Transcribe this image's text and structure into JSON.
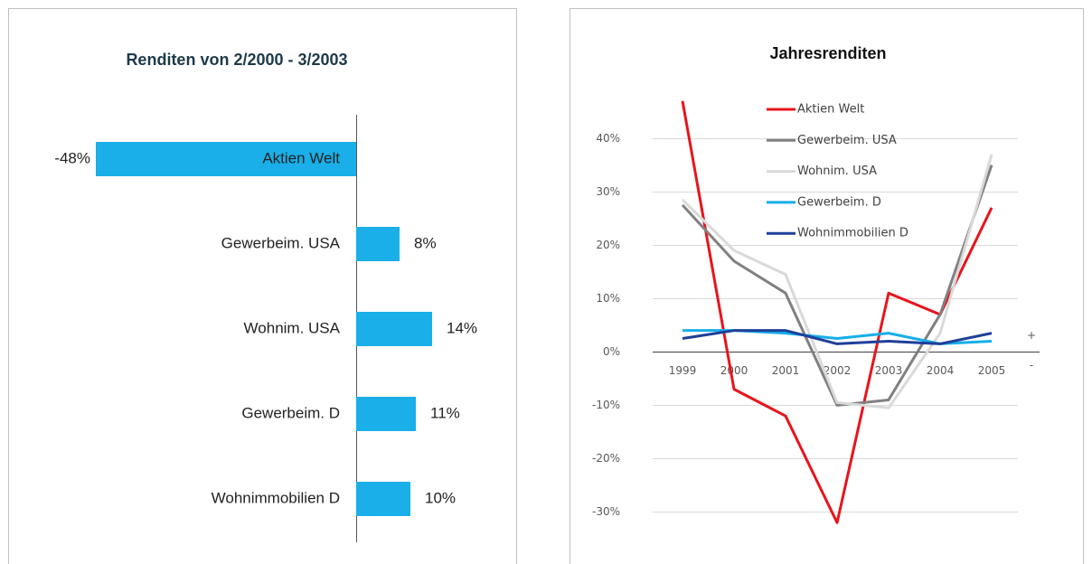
{
  "chart_data": [
    {
      "type": "bar",
      "orientation": "horizontal",
      "title": "Renditen von 2/2000 - 3/2003",
      "categories": [
        "Aktien Welt",
        "Gewerbeim. USA",
        "Wohnim. USA",
        "Gewerbeim. D",
        "Wohnimmobilien D"
      ],
      "values": [
        -48,
        8,
        14,
        11,
        10
      ],
      "value_labels": [
        "-48%",
        "8%",
        "14%",
        "11%",
        "10%"
      ],
      "color": "#1aafe8"
    },
    {
      "type": "line",
      "title": "Jahresrenditen",
      "categories": [
        "1999",
        "2000",
        "2001",
        "2002",
        "2003",
        "2004",
        "2005"
      ],
      "ylim": [
        -35,
        50
      ],
      "yticks": [
        {
          "value": -30,
          "label": "-30%"
        },
        {
          "value": -20,
          "label": "-20%"
        },
        {
          "value": -10,
          "label": "-10%"
        },
        {
          "value": 0,
          "label": "0%"
        },
        {
          "value": 10,
          "label": "10%"
        },
        {
          "value": 20,
          "label": "20%"
        },
        {
          "value": 30,
          "label": "30%"
        },
        {
          "value": 40,
          "label": "40%"
        }
      ],
      "grid": true,
      "legend": "upper center",
      "annotations": [
        "+",
        "-"
      ],
      "series": [
        {
          "name": "Aktien Welt",
          "color": "#e8141b",
          "values": [
            47,
            -7,
            -12,
            -32,
            11,
            7,
            27
          ]
        },
        {
          "name": "Gewerbeim. USA",
          "color": "#808080",
          "values": [
            27.5,
            17,
            11,
            -10,
            -9,
            7,
            35
          ]
        },
        {
          "name": "Wohnim. USA",
          "color": "#d9d9d9",
          "values": [
            28.5,
            19,
            14.5,
            -9.5,
            -10.5,
            3.5,
            37
          ]
        },
        {
          "name": "Gewerbeim. D",
          "color": "#16aee8",
          "values": [
            4,
            4,
            3.5,
            2.5,
            3.5,
            1.5,
            2
          ]
        },
        {
          "name": "Wohnimmobilien D",
          "color": "#1f3f99",
          "values": [
            2.5,
            4,
            4,
            1.5,
            2,
            1.5,
            3.5
          ]
        }
      ]
    }
  ]
}
